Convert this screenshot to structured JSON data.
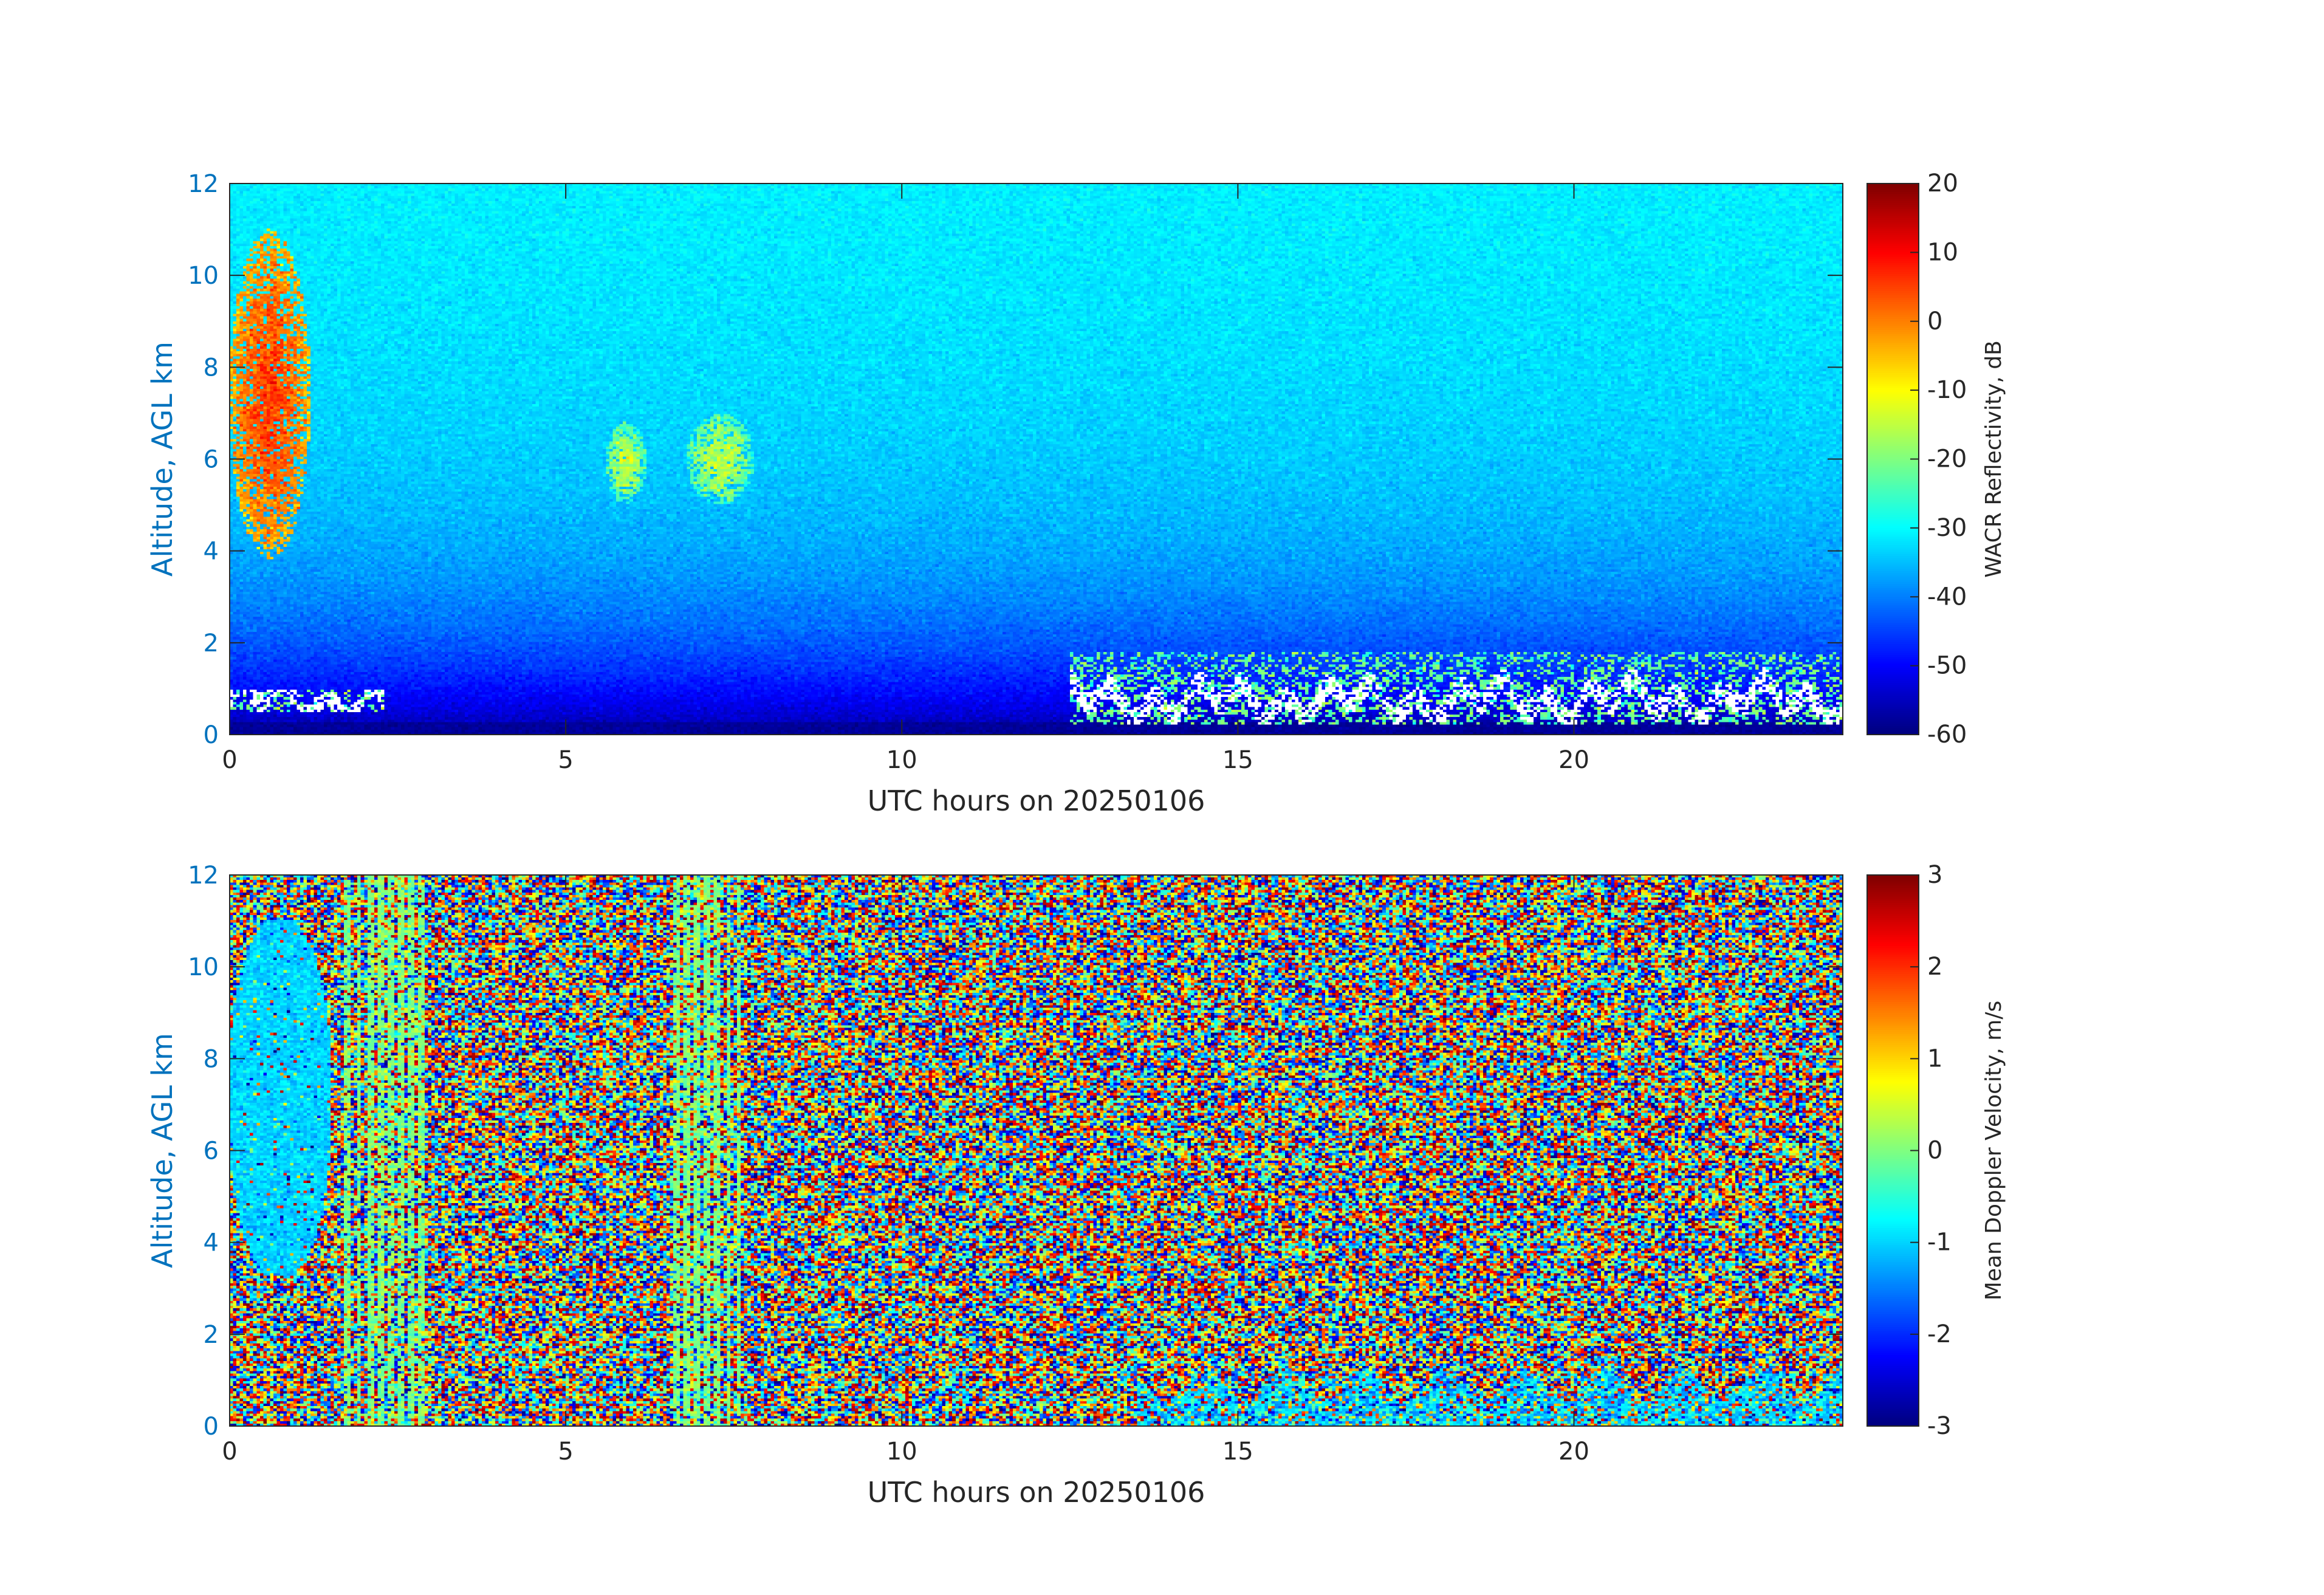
{
  "chart_data": [
    {
      "type": "heatmap",
      "name": "reflectivity",
      "xlabel": "UTC hours on 20250106",
      "ylabel": "Altitude, AGL km",
      "xlim": [
        0,
        24
      ],
      "ylim": [
        0,
        12
      ],
      "xticks": [
        0,
        5,
        10,
        15,
        20
      ],
      "yticks": [
        0,
        2,
        4,
        6,
        8,
        10,
        12
      ],
      "colorbar": {
        "label": "WACR Reflectivity, dB",
        "range": [
          -60,
          20
        ],
        "ticks": [
          20,
          10,
          0,
          -10,
          -20,
          -30,
          -40,
          -50,
          -60
        ],
        "colormap": "jet"
      },
      "features": [
        {
          "desc": "high cloud",
          "x": [
            0,
            1.2
          ],
          "y": [
            3.8,
            11
          ],
          "value_dB": 5
        },
        {
          "desc": "mid cloud",
          "x": [
            5.6,
            6.2
          ],
          "y": [
            5.0,
            6.8
          ],
          "value_dB": -15
        },
        {
          "desc": "mid cloud",
          "x": [
            6.8,
            7.8
          ],
          "y": [
            5.0,
            7.0
          ],
          "value_dB": -15
        },
        {
          "desc": "low cloud",
          "x": [
            0,
            2.3
          ],
          "y": [
            0.5,
            1.0
          ],
          "value_dB": "clipped"
        },
        {
          "desc": "low cloud",
          "x": [
            12.5,
            24
          ],
          "y": [
            0.2,
            1.8
          ],
          "value_dB": "clipped"
        }
      ]
    },
    {
      "type": "heatmap",
      "name": "doppler-velocity",
      "xlabel": "UTC hours on 20250106",
      "ylabel": "Altitude, AGL km",
      "xlim": [
        0,
        24
      ],
      "ylim": [
        0,
        12
      ],
      "xticks": [
        0,
        5,
        10,
        15,
        20
      ],
      "yticks": [
        0,
        2,
        4,
        6,
        8,
        10,
        12
      ],
      "colorbar": {
        "label": "Mean Doppler Velocity, m/s",
        "range": [
          -3,
          3
        ],
        "ticks": [
          3,
          2,
          1,
          0,
          -1,
          -2,
          -3
        ],
        "colormap": "jet"
      },
      "features": [
        {
          "desc": "high cloud",
          "x": [
            0,
            1.5
          ],
          "y": [
            3.3,
            11
          ],
          "value_ms": -1
        },
        {
          "desc": "noise band",
          "x": [
            1.7,
            2.9
          ],
          "y": [
            0,
            12
          ],
          "value_ms": 0
        },
        {
          "desc": "noise band",
          "x": [
            6.6,
            7.6
          ],
          "y": [
            0,
            12
          ],
          "value_ms": 0
        },
        {
          "desc": "low cloud",
          "x": [
            13.5,
            24
          ],
          "y": [
            0,
            1.8
          ],
          "value_ms": -1
        }
      ]
    }
  ]
}
